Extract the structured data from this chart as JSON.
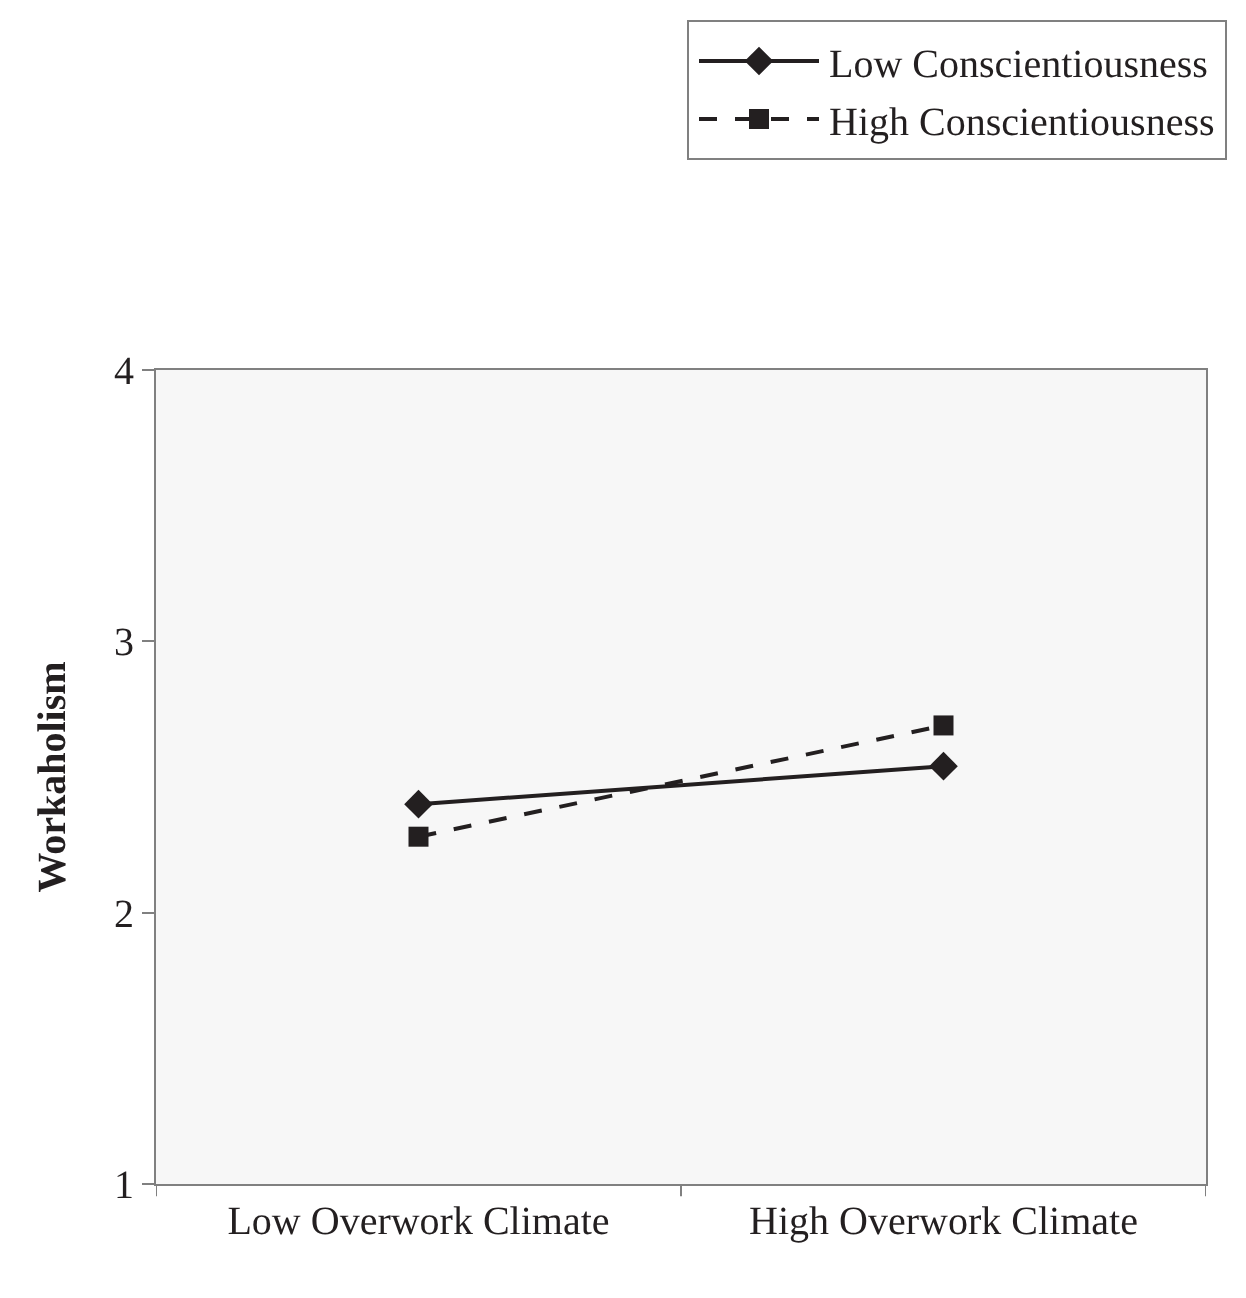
{
  "chart_data": {
    "type": "line",
    "ylabel": "Workaholism",
    "categories": [
      "Low Overwork Climate",
      "High Overwork Climate"
    ],
    "series": [
      {
        "name": "Low Conscientiousness",
        "color": "#231f20",
        "values": [
          2.4,
          2.54
        ],
        "marker": "diamond",
        "line_style": "solid"
      },
      {
        "name": "High Conscientiousness",
        "color": "#231f20",
        "values": [
          2.28,
          2.69
        ],
        "marker": "square",
        "line_style": "dashed"
      }
    ],
    "ylim": [
      1,
      4
    ],
    "yticks": [
      1,
      2,
      3,
      4
    ],
    "grid": false,
    "legend": "top right"
  }
}
